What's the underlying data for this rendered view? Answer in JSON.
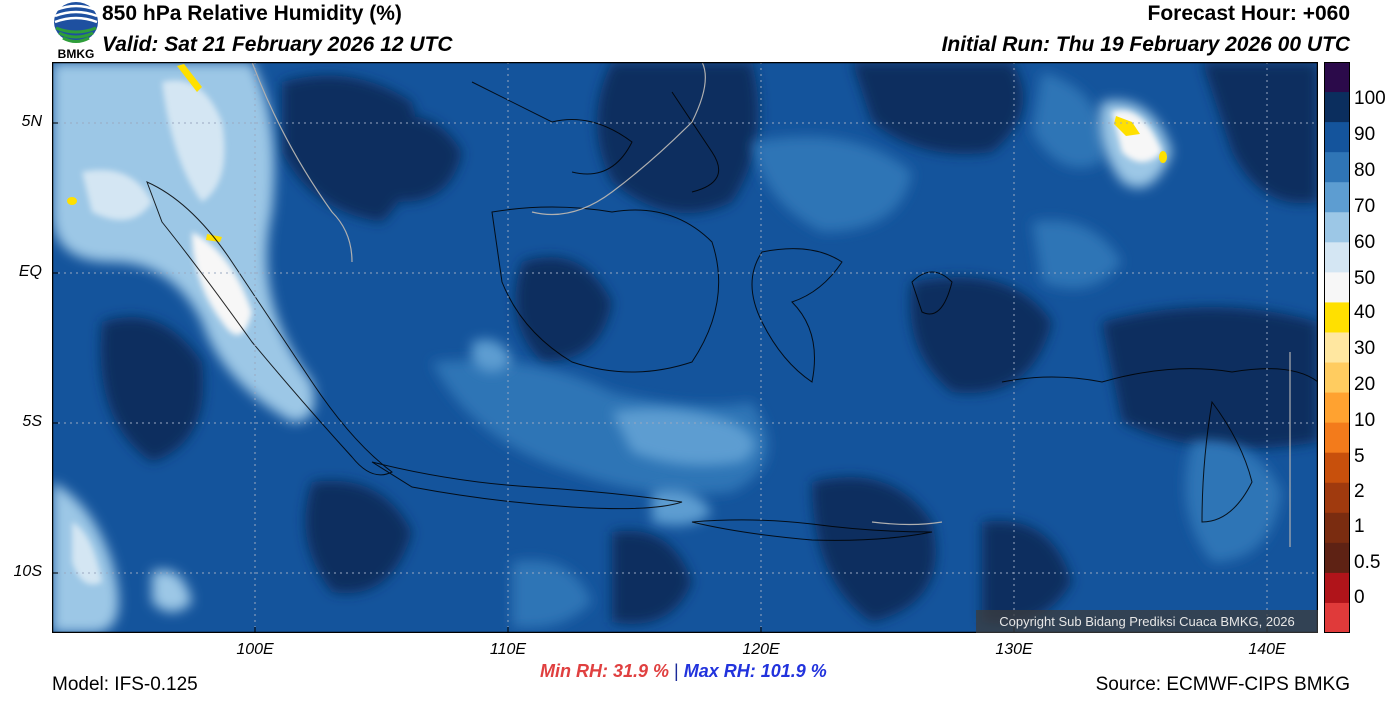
{
  "header": {
    "title": "850 hPa Relative Humidity (%)",
    "valid": "Valid: Sat 21 February 2026 12 UTC",
    "forecast_hour": "Forecast Hour: +060",
    "initial_run": "Initial Run: Thu 19 February 2026 00 UTC",
    "logo_text": "BMKG"
  },
  "map": {
    "lat_labels": [
      "5N",
      "EQ",
      "5S",
      "10S"
    ],
    "lon_labels": [
      "100E",
      "110E",
      "120E",
      "130E",
      "140E"
    ],
    "copyright": "Copyright Sub Bidang Prediksi Cuaca BMKG, 2026"
  },
  "colorbar": {
    "labels": [
      "100",
      "90",
      "80",
      "70",
      "60",
      "50",
      "40",
      "30",
      "20",
      "10",
      "5",
      "2",
      "1",
      "0.5",
      "0"
    ],
    "colors": [
      "#2b0a4a",
      "#0b2e5e",
      "#14549c",
      "#2f75b6",
      "#5d9dd1",
      "#9cc7e6",
      "#d4e6f3",
      "#f7f7f7",
      "#ffe000",
      "#ffe7a0",
      "#ffcc60",
      "#ffa230",
      "#f37b1b",
      "#c8500c",
      "#a03a0e",
      "#7a2c10",
      "#5e2214",
      "#b0141a",
      "#e03a3a"
    ]
  },
  "footer": {
    "model": "Model: IFS-0.125",
    "min_rh": "Min RH:  31.9 %",
    "separator": "|",
    "max_rh": "Max RH: 101.9 %",
    "source": "Source: ECMWF-CIPS BMKG"
  }
}
